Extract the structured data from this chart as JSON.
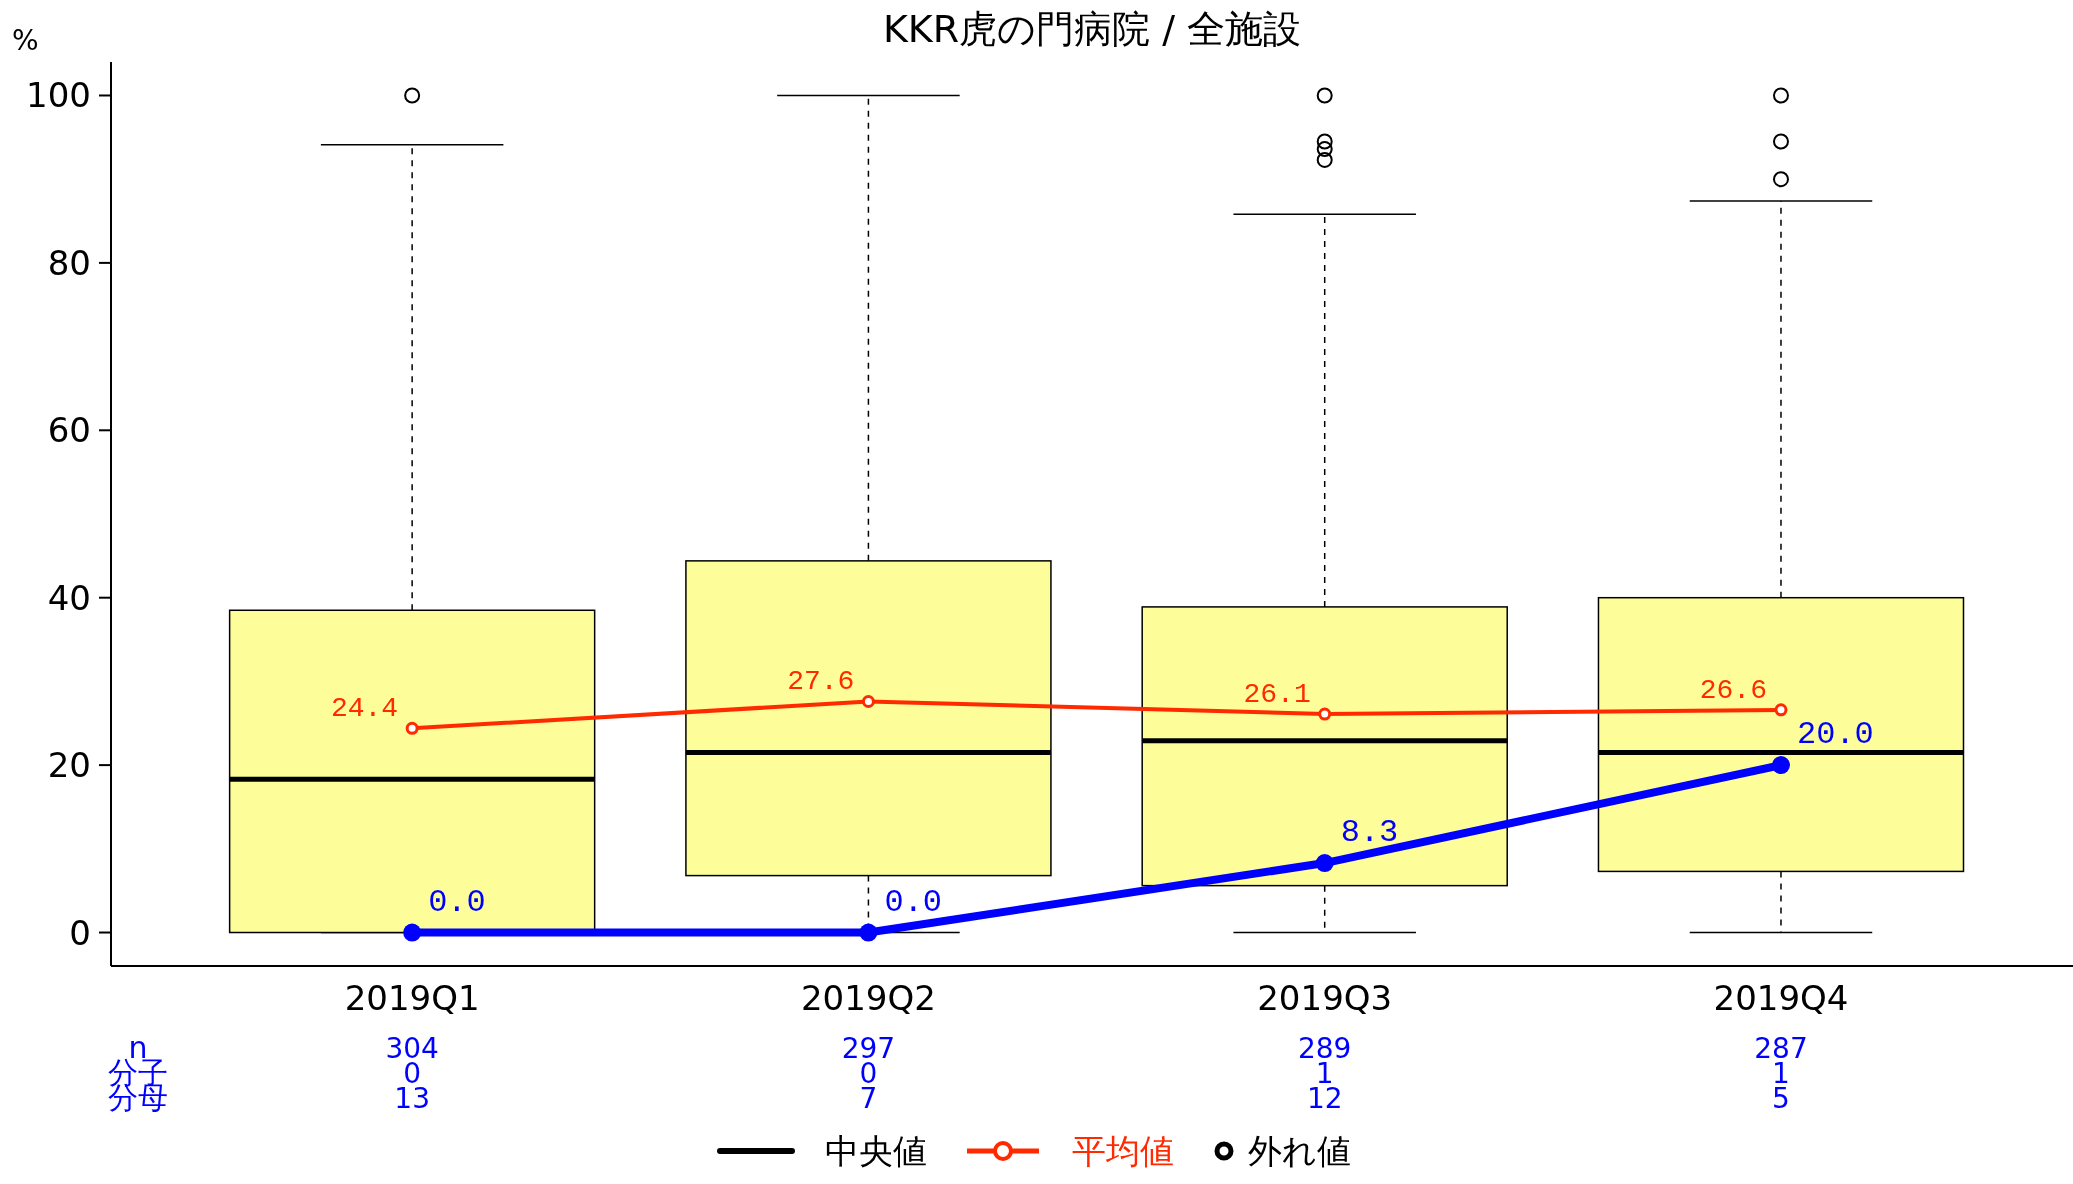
{
  "chart_data": {
    "type": "box",
    "title": "KKR虎の門病院 / 全施設",
    "ylabel": "%",
    "categories": [
      "2019Q1",
      "2019Q2",
      "2019Q3",
      "2019Q4"
    ],
    "ylim": [
      -4,
      104
    ],
    "yticks": [
      0,
      20,
      40,
      60,
      80,
      100
    ],
    "grid": false,
    "legend": "bottom",
    "series": [
      {
        "type": "box",
        "name": "中央値",
        "color": "#fdfd99",
        "boxes": [
          {
            "low": 0,
            "q1": 0,
            "median": 18.3,
            "q3": 38.5,
            "high": 94.1
          },
          {
            "low": 0,
            "q1": 6.8,
            "median": 21.5,
            "q3": 44.4,
            "high": 100
          },
          {
            "low": 0,
            "q1": 5.6,
            "median": 22.9,
            "q3": 38.9,
            "high": 85.8
          },
          {
            "low": 0,
            "q1": 7.3,
            "median": 21.5,
            "q3": 40.0,
            "high": 87.4
          }
        ]
      },
      {
        "type": "line",
        "name": "平均値",
        "color": "#ff2a00",
        "marker": "circle",
        "data_labels": true,
        "values": [
          24.4,
          27.6,
          26.1,
          26.6
        ]
      },
      {
        "type": "scatter",
        "name": "外れ値",
        "color": "#000000",
        "marker": "circle",
        "x": [
          "2019Q1",
          "2019Q3",
          "2019Q3",
          "2019Q3",
          "2019Q3",
          "2019Q4",
          "2019Q4",
          "2019Q4"
        ],
        "values": [
          100,
          100,
          94.5,
          93.6,
          92.3,
          100,
          94.5,
          90.0
        ]
      },
      {
        "type": "line",
        "color": "#0000ff",
        "marker": "circle",
        "values": [
          0,
          0,
          8.3,
          20.0
        ],
        "value_labels": [
          "0.0",
          "0.0",
          "8.3",
          "20.0"
        ]
      }
    ],
    "annotations": [
      "n",
      "分子",
      "分母",
      "304",
      "0",
      "13",
      "297",
      "0",
      "7",
      "289",
      "1",
      "12",
      "287",
      "1",
      "5"
    ]
  }
}
